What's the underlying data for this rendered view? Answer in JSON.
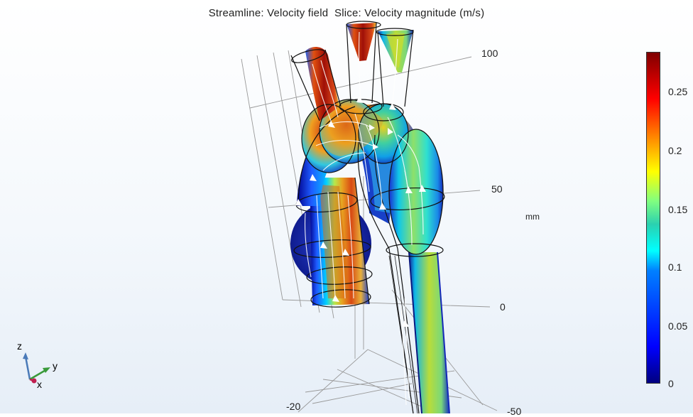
{
  "title": "Streamline: Velocity field  Slice: Velocity magnitude (m/s)",
  "axis_z_ticks": [
    "100",
    "50",
    "0"
  ],
  "axis_bottom_ticks": [
    "-20",
    "-50"
  ],
  "unit": "mm",
  "colorbar": {
    "ticks": [
      "0.25",
      "0.2",
      "0.15",
      "0.1",
      "0.05",
      "0"
    ],
    "colors": [
      "#00007f",
      "#0000ff",
      "#00ffff",
      "#80ff80",
      "#ffff00",
      "#ff0000",
      "#7f0000"
    ]
  },
  "triad": {
    "z": "z",
    "y": "y",
    "x": "x"
  },
  "icons": [
    "axis-triad-icon"
  ]
}
